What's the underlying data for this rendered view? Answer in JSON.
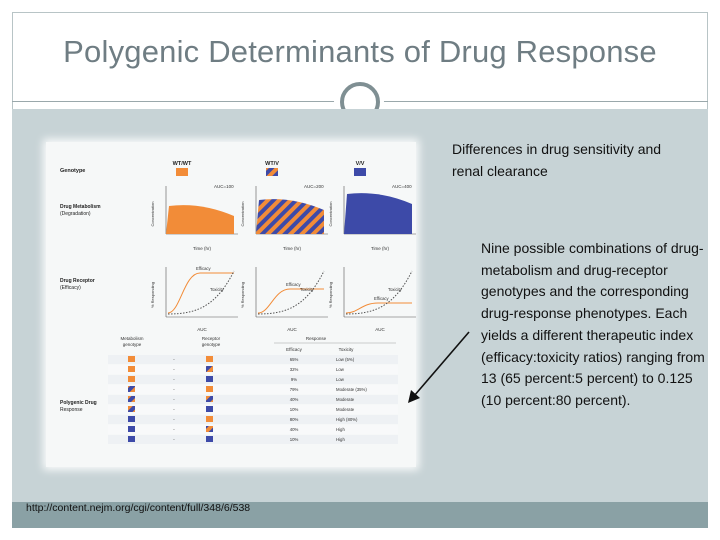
{
  "slide": {
    "title": "Polygenic Determinants of Drug Response",
    "text_top": "Differences in drug sensitivity and renal clearance",
    "text_main": "Nine possible combinations of drug-metabolism and drug-receptor genotypes and the corresponding drug-response phenotypes. Each yields a different therapeutic index (efficacy:toxicity ratios) ranging from 13 (65 percent:5 percent) to 0.125 (10 percent:80 percent).",
    "source_url": "http://content.nejm.org/cgi/content/full/348/6/538"
  },
  "figure": {
    "genotype_label": "Genotype",
    "genotypes": [
      "WT/WT",
      "WT/V",
      "V/V"
    ],
    "metabolism_label_1": "Drug Metabolism",
    "metabolism_label_2": "(Degradation)",
    "auc_labels": [
      "AUC=100",
      "AUC=200",
      "AUC=400"
    ],
    "conc_ylabel": "Concentration",
    "time_xlabel": "Time (hr)",
    "receptor_label_1": "Drug Receptor",
    "receptor_label_2": "(Efficacy)",
    "resp_ylabel": "% Responding",
    "auc_xlabel": "AUC",
    "efficacy_word": "Efficacy",
    "toxicity_word": "Toxicity",
    "table_header_metab_1": "Metabolism",
    "table_header_metab_2": "genotype",
    "table_header_recep_1": "Receptor",
    "table_header_recep_2": "genotype",
    "table_header_response": "Response",
    "table_header_efficacy": "Efficacy",
    "table_header_toxicity": "Toxicity",
    "polygenic_label_1": "Polygenic Drug",
    "polygenic_label_2": "Response",
    "colors": {
      "wt": "#f28c38",
      "mixed_a": "#f28c38",
      "mixed_b": "#3d4aa8",
      "v": "#3d4aa8"
    },
    "rows": [
      {
        "metab": "wt",
        "recep": "wt",
        "efficacy": "65%",
        "toxicity": "Low (5%)"
      },
      {
        "metab": "wt",
        "recep": "mixed",
        "efficacy": "32%",
        "toxicity": "Low"
      },
      {
        "metab": "wt",
        "recep": "v",
        "efficacy": "9%",
        "toxicity": "Low"
      },
      {
        "metab": "mixed",
        "recep": "wt",
        "efficacy": "79%",
        "toxicity": "Moderate (35%)"
      },
      {
        "metab": "mixed",
        "recep": "mixed",
        "efficacy": "40%",
        "toxicity": "Moderate"
      },
      {
        "metab": "mixed",
        "recep": "v",
        "efficacy": "10%",
        "toxicity": "Moderate"
      },
      {
        "metab": "v",
        "recep": "wt",
        "efficacy": "80%",
        "toxicity": "High (80%)"
      },
      {
        "metab": "v",
        "recep": "mixed",
        "efficacy": "40%",
        "toxicity": "High"
      },
      {
        "metab": "v",
        "recep": "v",
        "efficacy": "10%",
        "toxicity": "High"
      }
    ]
  }
}
